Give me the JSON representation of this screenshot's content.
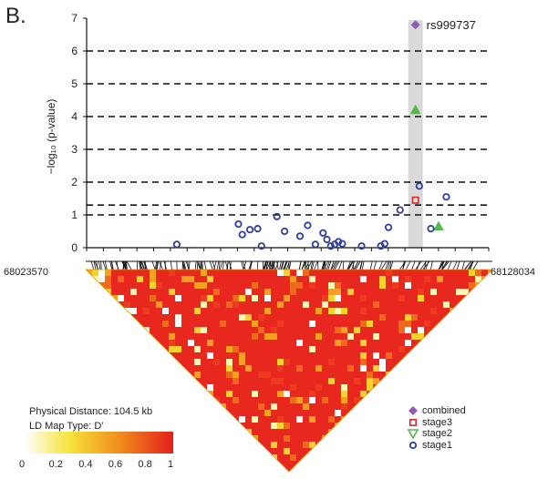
{
  "panel_label": "B.",
  "colors": {
    "combined": "#8e5bb5",
    "stage3": "#d62b2b",
    "stage2": "#55b84a",
    "stage1": "#2f3f9a",
    "highlight": "#d9d9d9",
    "ld_low": "#ffffff",
    "ld_mid": "#f5d020",
    "ld_high": "#e8281e"
  },
  "chart_data": {
    "type": "scatter",
    "ylabel": "−log₁₀ (p-value)",
    "ylim": [
      0,
      7
    ],
    "yticks": [
      0,
      1,
      2,
      3,
      4,
      5,
      6,
      7
    ],
    "xlim": [
      68023570,
      68128034
    ],
    "x_start_label": "68023570",
    "x_end_label": "68128034",
    "grid": "dashed horizontal",
    "gridlines_y": [
      1,
      1.3,
      2,
      3,
      4,
      5,
      6
    ],
    "highlighted_snp": {
      "label": "rs999737",
      "x": 68109000
    },
    "series": [
      {
        "name": "combined",
        "marker": "diamond",
        "points": [
          [
            68109000,
            6.8
          ]
        ]
      },
      {
        "name": "stage3",
        "marker": "square",
        "points": [
          [
            68109000,
            1.45
          ]
        ]
      },
      {
        "name": "stage2",
        "marker": "triangle",
        "points": [
          [
            68109000,
            4.2
          ],
          [
            68115000,
            0.65
          ]
        ]
      },
      {
        "name": "stage1",
        "marker": "circle",
        "points": [
          [
            68047000,
            0.1
          ],
          [
            68063000,
            0.72
          ],
          [
            68064000,
            0.4
          ],
          [
            68066000,
            0.55
          ],
          [
            68068000,
            0.58
          ],
          [
            68069000,
            0.05
          ],
          [
            68073000,
            0.95
          ],
          [
            68075000,
            0.5
          ],
          [
            68079000,
            0.35
          ],
          [
            68081000,
            0.68
          ],
          [
            68083000,
            0.1
          ],
          [
            68085000,
            0.45
          ],
          [
            68086000,
            0.25
          ],
          [
            68087000,
            0.05
          ],
          [
            68088000,
            0.1
          ],
          [
            68089000,
            0.18
          ],
          [
            68090000,
            0.12
          ],
          [
            68095000,
            0.05
          ],
          [
            68100000,
            0.05
          ],
          [
            68101000,
            0.12
          ],
          [
            68102000,
            0.62
          ],
          [
            68105000,
            1.15
          ],
          [
            68110000,
            1.88
          ],
          [
            68113000,
            0.58
          ],
          [
            68117000,
            1.55
          ]
        ]
      }
    ]
  },
  "ld_map": {
    "physical_distance_label": "Physical Distance: 104.5 kb",
    "map_type_label": "LD Map Type: D'",
    "colorbar_ticks": [
      "0",
      "0.2",
      "0.4",
      "0.6",
      "0.8",
      "1"
    ]
  },
  "legend": {
    "items": [
      {
        "label": "combined",
        "marker": "diamond"
      },
      {
        "label": "stage3",
        "marker": "square"
      },
      {
        "label": "stage2",
        "marker": "triangle"
      },
      {
        "label": "stage1",
        "marker": "circle"
      }
    ]
  }
}
